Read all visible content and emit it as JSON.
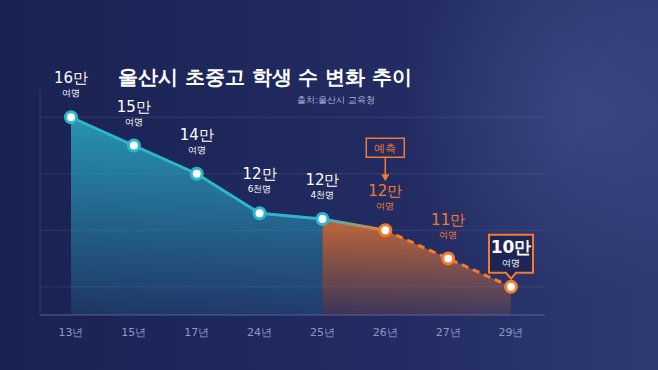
{
  "chart_data": {
    "type": "line",
    "title": "울산시 초중고 학생 수 변화 추이",
    "subtitle": "출처:울산시 교육청",
    "categories": [
      "13년",
      "15년",
      "17년",
      "24년",
      "25년",
      "26년",
      "27년",
      "29년"
    ],
    "series": [
      {
        "color": "#2bb8cf",
        "marker": "circle",
        "line_style": "solid",
        "values": [
          160000,
          150000,
          140000,
          126000,
          124000,
          null,
          null,
          null
        ],
        "value_labels": [
          "16만 여명",
          "15만 여명",
          "14만 여명",
          "12만 6천명",
          "12만 4천명",
          null,
          null,
          null
        ]
      },
      {
        "name": "예측",
        "color": "#f47b2b",
        "marker": "circle",
        "line_style": "dashed",
        "values": [
          null,
          null,
          null,
          null,
          null,
          120000,
          110000,
          100000
        ],
        "value_labels": [
          null,
          null,
          null,
          null,
          null,
          "12만 여명",
          "11만 여명",
          "10만 여명"
        ]
      }
    ],
    "ylim": [
      90000,
      170000
    ],
    "yticks": [
      100000,
      120000,
      140000,
      160000
    ],
    "grid": true,
    "tick_labels": "x",
    "data_labels": true
  }
}
